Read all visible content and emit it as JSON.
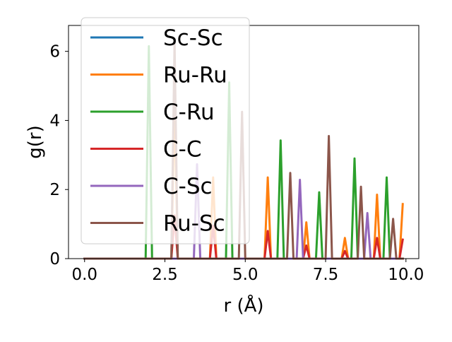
{
  "chart_data": {
    "type": "line",
    "title": "",
    "xlabel": "r (Å)",
    "ylabel": "g(r)",
    "xlim": [
      -0.5,
      10.4
    ],
    "ylim": [
      0,
      6.75
    ],
    "xticks": [
      0.0,
      2.5,
      5.0,
      7.5,
      10.0
    ],
    "xtick_labels": [
      "0.0",
      "2.5",
      "5.0",
      "7.5",
      "10.0"
    ],
    "yticks": [
      0,
      2,
      4,
      6
    ],
    "ytick_labels": [
      "0",
      "2",
      "4",
      "6"
    ],
    "grid": false,
    "legend_position": "upper-left",
    "series": [
      {
        "name": "Sc-Sc",
        "color": "#1f77b4",
        "peaks": []
      },
      {
        "name": "Ru-Ru",
        "color": "#ff7f0e",
        "peaks": [
          [
            2.8,
            4.5
          ],
          [
            4.0,
            2.35
          ],
          [
            5.7,
            2.35
          ],
          [
            6.9,
            1.05
          ],
          [
            8.1,
            0.6
          ],
          [
            9.1,
            1.85
          ],
          [
            9.9,
            1.58
          ]
        ]
      },
      {
        "name": "C-Ru",
        "color": "#2ca02c",
        "peaks": [
          [
            2.0,
            6.15
          ],
          [
            4.5,
            5.1
          ],
          [
            6.1,
            3.42
          ],
          [
            7.3,
            1.92
          ],
          [
            8.4,
            2.9
          ],
          [
            9.4,
            2.35
          ]
        ]
      },
      {
        "name": "C-C",
        "color": "#d62728",
        "peaks": [
          [
            2.8,
            1.25
          ],
          [
            4.0,
            0.95
          ],
          [
            5.7,
            0.8
          ],
          [
            6.9,
            0.38
          ],
          [
            8.1,
            0.22
          ],
          [
            9.1,
            0.6
          ],
          [
            9.9,
            0.55
          ]
        ]
      },
      {
        "name": "C-Sc",
        "color": "#9467bd",
        "peaks": [
          [
            3.5,
            2.73
          ],
          [
            6.7,
            2.28
          ],
          [
            8.8,
            1.32
          ]
        ]
      },
      {
        "name": "Ru-Sc",
        "color": "#8c564b",
        "peaks": [
          [
            2.8,
            6.3
          ],
          [
            4.9,
            4.25
          ],
          [
            6.4,
            2.48
          ],
          [
            7.6,
            3.55
          ],
          [
            8.6,
            2.08
          ],
          [
            9.6,
            1.15
          ]
        ]
      }
    ]
  }
}
